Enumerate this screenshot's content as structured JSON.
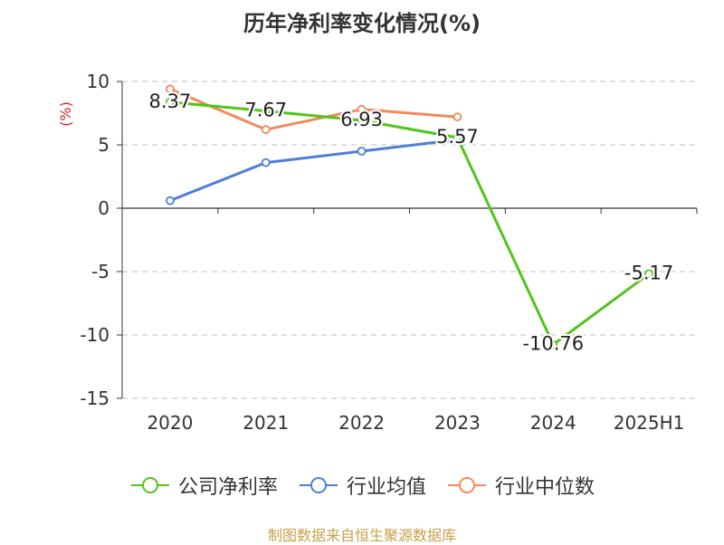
{
  "chart_data": {
    "type": "line",
    "title": "历年净利率变化情况(%)",
    "ylabel": "(%)",
    "categories": [
      "2020",
      "2021",
      "2022",
      "2023",
      "2024",
      "2025H1"
    ],
    "ylim": [
      -15,
      10
    ],
    "yticks": [
      10,
      5,
      0,
      -5,
      -10,
      -15
    ],
    "grid": true,
    "legend_position": "bottom",
    "series": [
      {
        "name": "公司净利率",
        "color": "#52c41a",
        "values": [
          8.37,
          7.67,
          6.93,
          5.57,
          -10.76,
          -5.17
        ],
        "labels": [
          "8.37",
          "7.67",
          "6.93",
          "5.57",
          "-10.76",
          "-5.17"
        ]
      },
      {
        "name": "行业均值",
        "color": "#4e7fd8",
        "values": [
          0.6,
          3.6,
          4.5,
          5.4,
          null,
          null
        ]
      },
      {
        "name": "行业中位数",
        "color": "#f2895c",
        "values": [
          9.4,
          6.2,
          7.8,
          7.2,
          null,
          null
        ]
      }
    ]
  },
  "footer": {
    "source": "制图数据来自恒生聚源数据库"
  }
}
